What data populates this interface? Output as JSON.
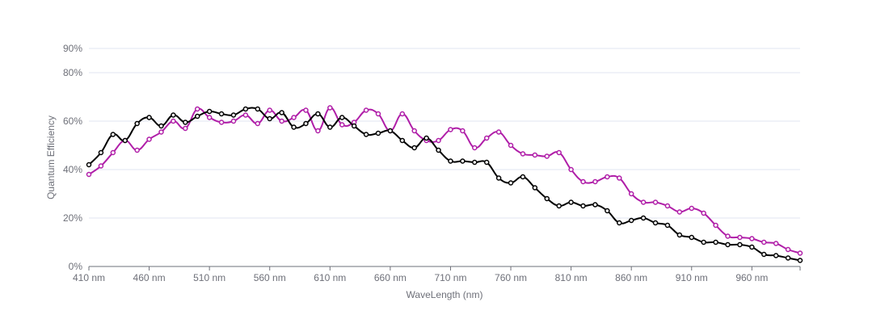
{
  "chart_data": {
    "type": "line",
    "xlabel": "WaveLength (nm)",
    "ylabel": "Quantum Efficiency",
    "x_ticks": [
      "410 nm",
      "460 nm",
      "510 nm",
      "560 nm",
      "610 nm",
      "660 nm",
      "710 nm",
      "760 nm",
      "810 nm",
      "860 nm",
      "910 nm",
      "960 nm"
    ],
    "x_tick_values": [
      410,
      460,
      510,
      560,
      610,
      660,
      710,
      760,
      810,
      860,
      910,
      960
    ],
    "y_ticks": [
      "0%",
      "20%",
      "40%",
      "60%",
      "80%",
      "90%"
    ],
    "y_tick_values": [
      0,
      20,
      40,
      60,
      80,
      90
    ],
    "xlim": [
      410,
      1000
    ],
    "ylim": [
      0,
      90
    ],
    "grid": true,
    "x": [
      410,
      420,
      430,
      440,
      450,
      460,
      470,
      480,
      490,
      500,
      510,
      520,
      530,
      540,
      550,
      560,
      570,
      580,
      590,
      600,
      610,
      620,
      630,
      640,
      650,
      660,
      670,
      680,
      690,
      700,
      710,
      720,
      730,
      740,
      750,
      760,
      770,
      780,
      790,
      800,
      810,
      820,
      830,
      840,
      850,
      860,
      870,
      880,
      890,
      900,
      910,
      920,
      930,
      940,
      950,
      960,
      970,
      980,
      990,
      1000
    ],
    "series": [
      {
        "color": "#000000",
        "values": [
          42,
          47,
          54.5,
          52,
          59,
          61.5,
          58,
          62.5,
          59.5,
          62,
          64,
          63,
          62.5,
          65,
          65,
          61,
          63.5,
          57.5,
          59,
          63,
          57.5,
          61.5,
          58,
          54.5,
          55,
          56,
          52,
          49,
          53,
          48,
          43.5,
          43.5,
          43,
          43,
          36.5,
          34.5,
          37,
          32.5,
          28,
          25,
          26.5,
          25,
          25.5,
          23,
          18,
          19,
          20,
          18,
          17,
          13,
          12,
          10,
          10,
          9,
          9,
          8,
          5,
          4.5,
          3.5,
          2.5
        ]
      },
      {
        "color": "#b01ea8",
        "values": [
          38,
          41.5,
          47,
          52,
          48,
          52.5,
          55.5,
          60,
          57,
          65,
          61.5,
          59.5,
          60,
          62.5,
          59,
          64.5,
          60,
          61.5,
          64.5,
          56,
          65.5,
          58.5,
          59.5,
          64.5,
          63,
          56,
          63,
          56,
          52,
          52,
          56.5,
          56,
          49,
          53,
          55.5,
          50,
          46.5,
          46,
          45.5,
          47,
          40,
          35,
          35,
          37,
          36.5,
          30,
          26.5,
          26.5,
          25,
          22.5,
          24,
          22,
          17,
          12.5,
          12,
          11.5,
          10,
          9.5,
          7,
          5.5
        ]
      }
    ]
  }
}
